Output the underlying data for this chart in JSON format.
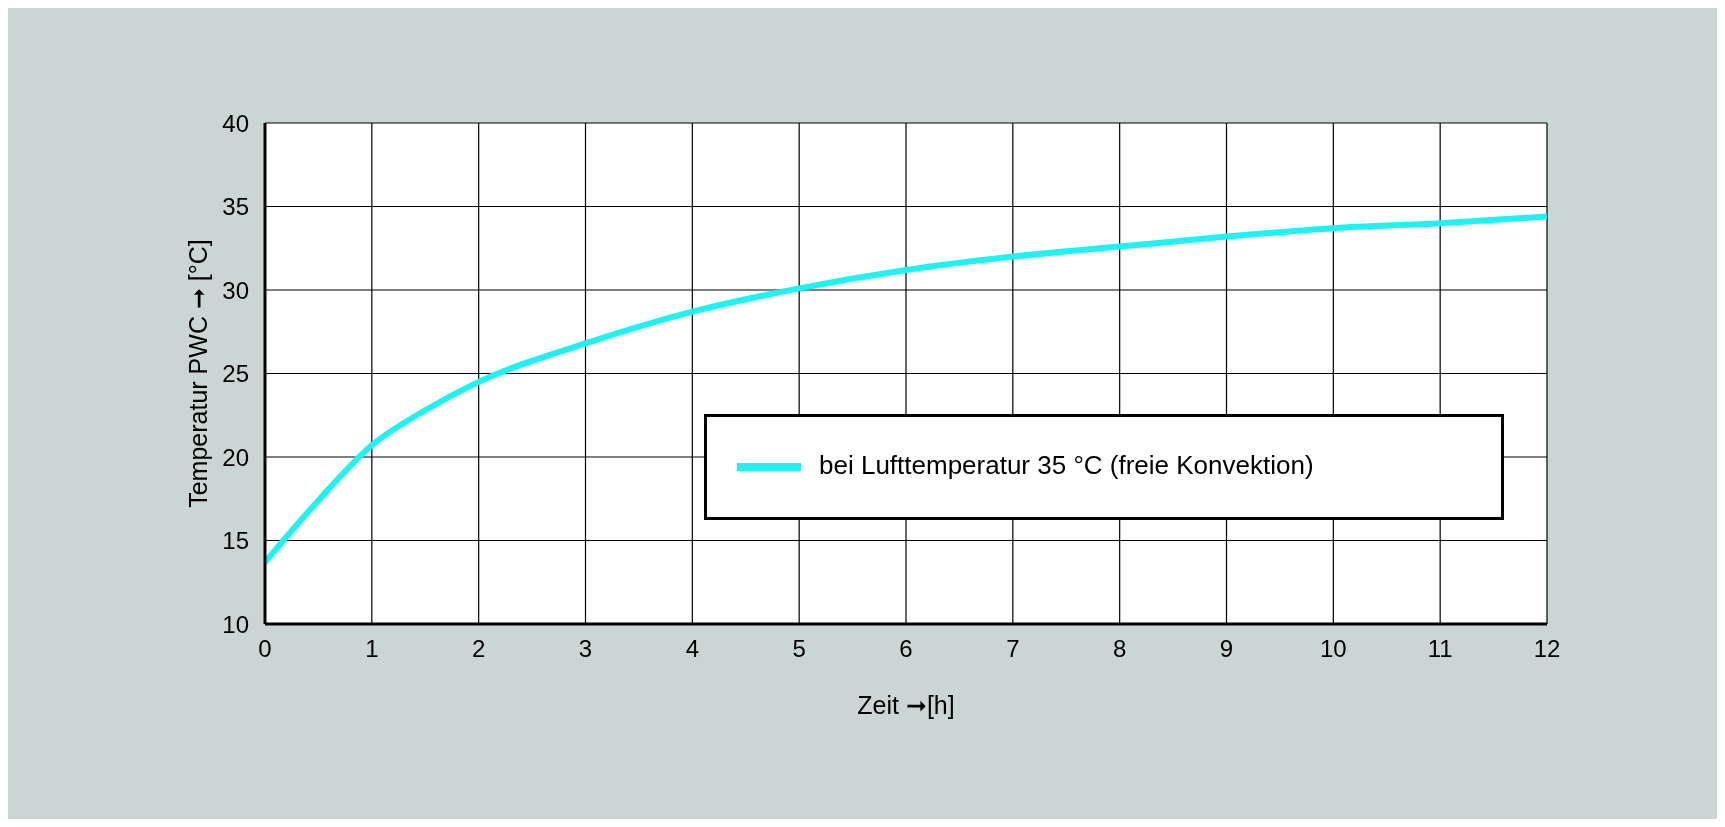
{
  "chart_data": {
    "type": "line",
    "xlabel": "Zeit ➞[h]",
    "ylabel": "Temperatur PWC ➞ [°C]",
    "x": [
      0,
      0.5,
      1,
      1.5,
      2,
      3,
      4,
      5,
      6,
      7,
      8,
      9,
      10,
      11,
      12
    ],
    "series": [
      {
        "name": "bei Lufttemperatur 35 °C (freie Konvektion)",
        "color": "#1ff2f2",
        "values": [
          13.7,
          17.4,
          20.7,
          22.8,
          24.5,
          26.8,
          28.7,
          30.1,
          31.2,
          32.0,
          32.6,
          33.2,
          33.7,
          34.0,
          34.4
        ]
      }
    ],
    "xlim": [
      0,
      12
    ],
    "xticks": [
      0,
      1,
      2,
      3,
      4,
      5,
      6,
      7,
      8,
      9,
      10,
      11,
      12
    ],
    "ylim": [
      10,
      40
    ],
    "yticks": [
      10,
      15,
      20,
      25,
      30,
      35,
      40
    ],
    "grid": true,
    "legend": "right",
    "marker": "none",
    "line_style": "solid"
  }
}
